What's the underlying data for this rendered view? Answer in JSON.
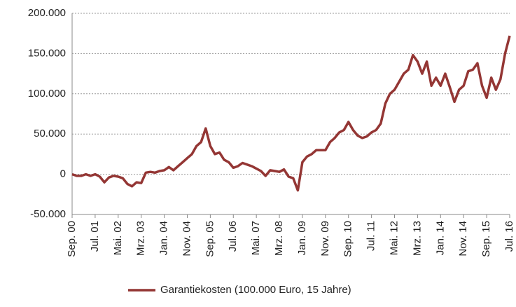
{
  "chart_data": {
    "type": "line",
    "categories": [
      "Sep. 00",
      null,
      null,
      null,
      null,
      "Jul. 01",
      null,
      null,
      null,
      null,
      "Mai. 02",
      null,
      null,
      null,
      null,
      "Mrz. 03",
      null,
      null,
      null,
      null,
      "Jan. 04",
      null,
      null,
      null,
      null,
      "Nov. 04",
      null,
      null,
      null,
      null,
      "Sep. 05",
      null,
      null,
      null,
      null,
      "Jul. 06",
      null,
      null,
      null,
      null,
      "Mai. 07",
      null,
      null,
      null,
      null,
      "Mrz. 08",
      null,
      null,
      null,
      null,
      "Jan. 09",
      null,
      null,
      null,
      null,
      "Nov. 09",
      null,
      null,
      null,
      null,
      "Sep. 10",
      null,
      null,
      null,
      null,
      "Jul. 11",
      null,
      null,
      null,
      null,
      "Mai. 12",
      null,
      null,
      null,
      null,
      "Mrz. 13",
      null,
      null,
      null,
      null,
      "Jan. 14",
      null,
      null,
      null,
      null,
      "Nov. 14",
      null,
      null,
      null,
      null,
      "Sep. 15",
      null,
      null,
      null,
      null,
      "Jul. 16"
    ],
    "series": [
      {
        "name": "Garantiekosten (100.000 Euro, 15 Jahre)",
        "color": "#943634",
        "values": [
          0,
          -2000,
          -2000,
          0,
          -2000,
          0,
          -3000,
          -10000,
          -4000,
          -2000,
          -3000,
          -5000,
          -12000,
          -15000,
          -10000,
          -11000,
          2000,
          3000,
          2000,
          4000,
          5000,
          9000,
          5000,
          10000,
          15000,
          20000,
          25000,
          35000,
          40000,
          57000,
          35000,
          25000,
          27000,
          18000,
          15000,
          8000,
          10000,
          14000,
          12000,
          10000,
          7000,
          4000,
          -2000,
          5000,
          4000,
          3000,
          6000,
          -3000,
          -5000,
          -20000,
          15000,
          22000,
          25000,
          30000,
          30000,
          30000,
          40000,
          45000,
          52000,
          55000,
          65000,
          55000,
          48000,
          45000,
          47000,
          52000,
          55000,
          63000,
          88000,
          100000,
          105000,
          115000,
          125000,
          130000,
          148000,
          140000,
          125000,
          140000,
          110000,
          120000,
          110000,
          125000,
          108000,
          90000,
          105000,
          110000,
          128000,
          130000,
          138000,
          110000,
          95000,
          120000,
          105000,
          118000,
          150000,
          172000
        ]
      }
    ],
    "ylim": [
      -50000,
      200000
    ],
    "yticks": [
      {
        "value": -50000,
        "label": "-50.000"
      },
      0,
      {
        "value": 50000,
        "label": "50.000"
      },
      {
        "value": 100000,
        "label": "100.000"
      },
      {
        "value": 150000,
        "label": "150.000"
      },
      {
        "value": 200000,
        "label": "200.000"
      }
    ],
    "grid": true,
    "legend": "bottom"
  }
}
